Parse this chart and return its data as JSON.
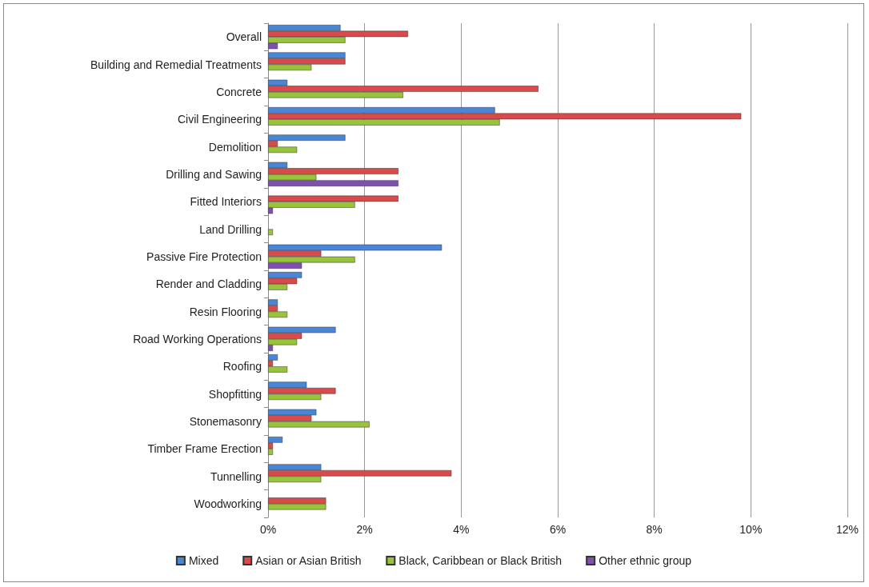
{
  "chart_data": {
    "type": "bar",
    "orientation": "horizontal",
    "categories": [
      "Overall",
      "Building and Remedial Treatments",
      "Concrete",
      "Civil Engineering",
      "Demolition",
      "Drilling and Sawing",
      "Fitted Interiors",
      "Land Drilling",
      "Passive Fire Protection",
      "Render and Cladding",
      "Resin Flooring",
      "Road Working Operations",
      "Roofing",
      "Shopfitting",
      "Stonemasonry",
      "Timber Frame Erection",
      "Tunnelling",
      "Woodworking"
    ],
    "series": [
      {
        "name": "Mixed",
        "color": "#4a86d6",
        "values": [
          1.5,
          1.6,
          0.4,
          4.7,
          1.6,
          0.4,
          null,
          null,
          3.6,
          0.7,
          0.2,
          1.4,
          0.2,
          0.8,
          1.0,
          0.3,
          1.1,
          null
        ]
      },
      {
        "name": "Asian or Asian British",
        "color": "#d94a4a",
        "values": [
          2.9,
          1.6,
          5.6,
          9.8,
          0.2,
          2.7,
          2.7,
          null,
          1.1,
          0.6,
          0.2,
          0.7,
          0.1,
          1.4,
          0.9,
          0.1,
          3.8,
          1.2
        ]
      },
      {
        "name": "Black, Caribbean or Black British",
        "color": "#98c43c",
        "values": [
          1.6,
          0.9,
          2.8,
          4.8,
          0.6,
          1.0,
          1.8,
          0.1,
          1.8,
          0.4,
          0.4,
          0.6,
          0.4,
          1.1,
          2.1,
          0.1,
          1.1,
          1.2
        ]
      },
      {
        "name": "Other ethnic group",
        "color": "#8050b0",
        "values": [
          0.2,
          null,
          null,
          null,
          null,
          2.7,
          0.1,
          null,
          0.7,
          null,
          null,
          0.1,
          null,
          null,
          null,
          null,
          null,
          null
        ]
      }
    ],
    "xlim": [
      0,
      12
    ],
    "xticks": [
      {
        "value": 0,
        "label": "0%"
      },
      {
        "value": 2,
        "label": "2%"
      },
      {
        "value": 4,
        "label": "4%"
      },
      {
        "value": 6,
        "label": "6%"
      },
      {
        "value": 8,
        "label": "8%"
      },
      {
        "value": 10,
        "label": "10%"
      },
      {
        "value": 12,
        "label": "12%"
      }
    ],
    "grid": "x",
    "legend": "bottom"
  }
}
